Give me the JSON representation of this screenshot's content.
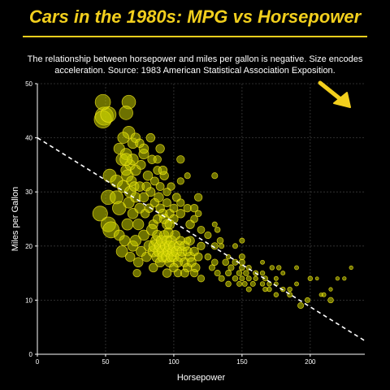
{
  "chart_data": {
    "type": "scatter",
    "title": "Cars in the 1980s: MPG vs Horsepower",
    "subtitle": "The relationship between horsepower and miles per gallon is negative. Size encodes acceleration. Source: 1983 American Statistical Association Exposition.",
    "xlabel": "Horsepower",
    "ylabel": "Miles per Gallon",
    "xlim": [
      0,
      240
    ],
    "ylim": [
      0,
      50
    ],
    "xticks": [
      "0",
      "50",
      "100",
      "150",
      "200"
    ],
    "yticks": [
      "0",
      "10",
      "20",
      "30",
      "40",
      "50"
    ],
    "grid": true,
    "size_encodes": "acceleration",
    "trendline": {
      "x": [
        0,
        240
      ],
      "y": [
        40,
        2.5
      ]
    },
    "colors": {
      "accent": "#f2cf1d",
      "point_fill": "#c6ce00",
      "point_stroke": "#f7ec1a",
      "trendline": "#ffffff"
    },
    "points": [
      {
        "x": 49,
        "y": 44,
        "s": 24.6
      },
      {
        "x": 48,
        "y": 43.4,
        "s": 23.7
      },
      {
        "x": 52,
        "y": 44.3,
        "s": 21.7
      },
      {
        "x": 48,
        "y": 46.6,
        "s": 21.5
      },
      {
        "x": 67,
        "y": 46.6,
        "s": 19.6
      },
      {
        "x": 65,
        "y": 44.6,
        "s": 19.6
      },
      {
        "x": 46,
        "y": 26,
        "s": 21
      },
      {
        "x": 52,
        "y": 29,
        "s": 20.5
      },
      {
        "x": 53,
        "y": 33,
        "s": 19
      },
      {
        "x": 52,
        "y": 24,
        "s": 21
      },
      {
        "x": 54,
        "y": 23,
        "s": 22.5
      },
      {
        "x": 58,
        "y": 32,
        "s": 18
      },
      {
        "x": 58,
        "y": 29,
        "s": 19
      },
      {
        "x": 60,
        "y": 27,
        "s": 19.5
      },
      {
        "x": 60,
        "y": 38,
        "s": 16.5
      },
      {
        "x": 62,
        "y": 36,
        "s": 17.5
      },
      {
        "x": 63,
        "y": 31,
        "s": 18
      },
      {
        "x": 65,
        "y": 34,
        "s": 16
      },
      {
        "x": 65,
        "y": 37,
        "s": 17
      },
      {
        "x": 66,
        "y": 33,
        "s": 17.5
      },
      {
        "x": 67,
        "y": 41,
        "s": 18
      },
      {
        "x": 67,
        "y": 28,
        "s": 16.5
      },
      {
        "x": 68,
        "y": 35,
        "s": 16
      },
      {
        "x": 68,
        "y": 30,
        "s": 17
      },
      {
        "x": 69,
        "y": 32,
        "s": 15.5
      },
      {
        "x": 70,
        "y": 26,
        "s": 16
      },
      {
        "x": 70,
        "y": 36,
        "s": 16.5
      },
      {
        "x": 71,
        "y": 31,
        "s": 15
      },
      {
        "x": 72,
        "y": 29,
        "s": 15.5
      },
      {
        "x": 72,
        "y": 34,
        "s": 16
      },
      {
        "x": 74,
        "y": 24,
        "s": 16.5
      },
      {
        "x": 75,
        "y": 31,
        "s": 15
      },
      {
        "x": 75,
        "y": 27,
        "s": 15.5
      },
      {
        "x": 76,
        "y": 35,
        "s": 14.5
      },
      {
        "x": 78,
        "y": 29,
        "s": 15
      },
      {
        "x": 78,
        "y": 37,
        "s": 15.5
      },
      {
        "x": 79,
        "y": 26,
        "s": 14
      },
      {
        "x": 80,
        "y": 31,
        "s": 14.5
      },
      {
        "x": 81,
        "y": 33,
        "s": 15
      },
      {
        "x": 82,
        "y": 27,
        "s": 14
      },
      {
        "x": 83,
        "y": 30,
        "s": 14.5
      },
      {
        "x": 84,
        "y": 36,
        "s": 14
      },
      {
        "x": 85,
        "y": 24,
        "s": 14.5
      },
      {
        "x": 86,
        "y": 32,
        "s": 13.5
      },
      {
        "x": 86,
        "y": 28,
        "s": 14
      },
      {
        "x": 88,
        "y": 34,
        "s": 13.5
      },
      {
        "x": 88,
        "y": 25,
        "s": 14
      },
      {
        "x": 89,
        "y": 29,
        "s": 15
      },
      {
        "x": 90,
        "y": 27,
        "s": 14
      },
      {
        "x": 90,
        "y": 31,
        "s": 13.5
      },
      {
        "x": 92,
        "y": 26,
        "s": 14.5
      },
      {
        "x": 93,
        "y": 33,
        "s": 14
      },
      {
        "x": 95,
        "y": 24,
        "s": 15
      },
      {
        "x": 95,
        "y": 28,
        "s": 13.5
      },
      {
        "x": 97,
        "y": 26,
        "s": 14
      },
      {
        "x": 98,
        "y": 31,
        "s": 13
      },
      {
        "x": 100,
        "y": 27,
        "s": 13.5
      },
      {
        "x": 100,
        "y": 25,
        "s": 14
      },
      {
        "x": 102,
        "y": 29,
        "s": 13.5
      },
      {
        "x": 105,
        "y": 26,
        "s": 14
      },
      {
        "x": 105,
        "y": 28,
        "s": 13
      },
      {
        "x": 110,
        "y": 27,
        "s": 13
      },
      {
        "x": 112,
        "y": 24,
        "s": 14
      },
      {
        "x": 115,
        "y": 25,
        "s": 12.5
      },
      {
        "x": 120,
        "y": 23,
        "s": 12.5
      },
      {
        "x": 118,
        "y": 26,
        "s": 11.5
      },
      {
        "x": 125,
        "y": 22,
        "s": 12
      },
      {
        "x": 130,
        "y": 20,
        "s": 12
      },
      {
        "x": 134,
        "y": 21,
        "s": 11.5
      },
      {
        "x": 60,
        "y": 22,
        "s": 16
      },
      {
        "x": 62,
        "y": 19,
        "s": 17
      },
      {
        "x": 64,
        "y": 21,
        "s": 16
      },
      {
        "x": 66,
        "y": 24,
        "s": 17
      },
      {
        "x": 68,
        "y": 18,
        "s": 15
      },
      {
        "x": 70,
        "y": 20,
        "s": 16
      },
      {
        "x": 72,
        "y": 21,
        "s": 16.5
      },
      {
        "x": 74,
        "y": 17,
        "s": 15
      },
      {
        "x": 76,
        "y": 19,
        "s": 15.5
      },
      {
        "x": 78,
        "y": 22,
        "s": 16
      },
      {
        "x": 80,
        "y": 18,
        "s": 15
      },
      {
        "x": 82,
        "y": 20,
        "s": 16.5
      },
      {
        "x": 84,
        "y": 23,
        "s": 16.5
      },
      {
        "x": 85,
        "y": 19,
        "s": 16.5
      },
      {
        "x": 86,
        "y": 20,
        "s": 17.5
      },
      {
        "x": 87,
        "y": 21,
        "s": 16
      },
      {
        "x": 88,
        "y": 18,
        "s": 17
      },
      {
        "x": 88,
        "y": 22,
        "s": 15.5
      },
      {
        "x": 89,
        "y": 19,
        "s": 16
      },
      {
        "x": 90,
        "y": 20,
        "s": 16.5
      },
      {
        "x": 90,
        "y": 17,
        "s": 15
      },
      {
        "x": 91,
        "y": 21,
        "s": 16
      },
      {
        "x": 92,
        "y": 19,
        "s": 17
      },
      {
        "x": 92,
        "y": 18,
        "s": 16
      },
      {
        "x": 93,
        "y": 22,
        "s": 15
      },
      {
        "x": 94,
        "y": 20,
        "s": 16
      },
      {
        "x": 95,
        "y": 18,
        "s": 17
      },
      {
        "x": 95,
        "y": 21,
        "s": 15.5
      },
      {
        "x": 96,
        "y": 19,
        "s": 16
      },
      {
        "x": 97,
        "y": 20,
        "s": 16.5
      },
      {
        "x": 97,
        "y": 17,
        "s": 15
      },
      {
        "x": 98,
        "y": 21,
        "s": 16
      },
      {
        "x": 98,
        "y": 18,
        "s": 15.5
      },
      {
        "x": 99,
        "y": 19,
        "s": 15
      },
      {
        "x": 100,
        "y": 20,
        "s": 16
      },
      {
        "x": 100,
        "y": 18,
        "s": 15.5
      },
      {
        "x": 101,
        "y": 22,
        "s": 15
      },
      {
        "x": 102,
        "y": 19,
        "s": 16
      },
      {
        "x": 103,
        "y": 17,
        "s": 15
      },
      {
        "x": 104,
        "y": 20,
        "s": 15.5
      },
      {
        "x": 105,
        "y": 18,
        "s": 15
      },
      {
        "x": 105,
        "y": 21,
        "s": 14
      },
      {
        "x": 106,
        "y": 19,
        "s": 15
      },
      {
        "x": 108,
        "y": 17,
        "s": 14.5
      },
      {
        "x": 108,
        "y": 20,
        "s": 15
      },
      {
        "x": 110,
        "y": 19,
        "s": 14.5
      },
      {
        "x": 110,
        "y": 16,
        "s": 14
      },
      {
        "x": 112,
        "y": 18,
        "s": 15
      },
      {
        "x": 112,
        "y": 21,
        "s": 14
      },
      {
        "x": 113,
        "y": 17,
        "s": 14.5
      },
      {
        "x": 115,
        "y": 19,
        "s": 14
      },
      {
        "x": 116,
        "y": 16,
        "s": 14
      },
      {
        "x": 118,
        "y": 18,
        "s": 13.5
      },
      {
        "x": 120,
        "y": 20,
        "s": 13
      },
      {
        "x": 96,
        "y": 22.5,
        "s": 15
      },
      {
        "x": 93,
        "y": 25,
        "s": 15
      },
      {
        "x": 97,
        "y": 24,
        "s": 15
      },
      {
        "x": 73,
        "y": 15,
        "s": 13
      },
      {
        "x": 85,
        "y": 16,
        "s": 14
      },
      {
        "x": 95,
        "y": 15,
        "s": 14
      },
      {
        "x": 100,
        "y": 16,
        "s": 14
      },
      {
        "x": 103,
        "y": 15,
        "s": 13
      },
      {
        "x": 108,
        "y": 15,
        "s": 13.5
      },
      {
        "x": 115,
        "y": 15,
        "s": 13
      },
      {
        "x": 120,
        "y": 14,
        "s": 12
      },
      {
        "x": 95,
        "y": 30,
        "s": 13
      },
      {
        "x": 105,
        "y": 32,
        "s": 12
      },
      {
        "x": 110,
        "y": 33,
        "s": 11
      },
      {
        "x": 88,
        "y": 36,
        "s": 13
      },
      {
        "x": 92,
        "y": 34,
        "s": 14
      },
      {
        "x": 110,
        "y": 21,
        "s": 12
      },
      {
        "x": 125,
        "y": 18,
        "s": 11.5
      },
      {
        "x": 128,
        "y": 16,
        "s": 11
      },
      {
        "x": 130,
        "y": 17,
        "s": 11.5
      },
      {
        "x": 132,
        "y": 15,
        "s": 11
      },
      {
        "x": 135,
        "y": 14,
        "s": 11
      },
      {
        "x": 138,
        "y": 17,
        "s": 11.5
      },
      {
        "x": 140,
        "y": 15,
        "s": 11
      },
      {
        "x": 140,
        "y": 13,
        "s": 10.5
      },
      {
        "x": 142,
        "y": 16,
        "s": 11
      },
      {
        "x": 145,
        "y": 14,
        "s": 10.5
      },
      {
        "x": 145,
        "y": 17,
        "s": 11
      },
      {
        "x": 148,
        "y": 15,
        "s": 10.5
      },
      {
        "x": 148,
        "y": 13,
        "s": 10
      },
      {
        "x": 150,
        "y": 16,
        "s": 10.5
      },
      {
        "x": 150,
        "y": 14,
        "s": 10
      },
      {
        "x": 150,
        "y": 18,
        "s": 11
      },
      {
        "x": 152,
        "y": 13,
        "s": 10
      },
      {
        "x": 153,
        "y": 15,
        "s": 10.5
      },
      {
        "x": 155,
        "y": 14,
        "s": 10
      },
      {
        "x": 155,
        "y": 16,
        "s": 10
      },
      {
        "x": 158,
        "y": 13,
        "s": 10
      },
      {
        "x": 160,
        "y": 15,
        "s": 10
      },
      {
        "x": 160,
        "y": 14,
        "s": 9.5
      },
      {
        "x": 165,
        "y": 13,
        "s": 9.5
      },
      {
        "x": 165,
        "y": 15,
        "s": 9.5
      },
      {
        "x": 167,
        "y": 14,
        "s": 10
      },
      {
        "x": 170,
        "y": 13,
        "s": 9.5
      },
      {
        "x": 170,
        "y": 12,
        "s": 9.5
      },
      {
        "x": 175,
        "y": 14,
        "s": 9
      },
      {
        "x": 175,
        "y": 13,
        "s": 9
      },
      {
        "x": 180,
        "y": 12,
        "s": 9.5
      },
      {
        "x": 180,
        "y": 15,
        "s": 9
      },
      {
        "x": 185,
        "y": 12,
        "s": 9.5
      },
      {
        "x": 190,
        "y": 13,
        "s": 9
      },
      {
        "x": 193,
        "y": 9,
        "s": 11
      },
      {
        "x": 198,
        "y": 10,
        "s": 10
      },
      {
        "x": 200,
        "y": 14,
        "s": 9.5
      },
      {
        "x": 205,
        "y": 14,
        "s": 8
      },
      {
        "x": 208,
        "y": 11,
        "s": 8.5
      },
      {
        "x": 210,
        "y": 11,
        "s": 9
      },
      {
        "x": 215,
        "y": 12,
        "s": 8.5
      },
      {
        "x": 215,
        "y": 10,
        "s": 10.5
      },
      {
        "x": 220,
        "y": 14,
        "s": 8.5
      },
      {
        "x": 225,
        "y": 14,
        "s": 8.5
      },
      {
        "x": 230,
        "y": 16,
        "s": 8.5
      },
      {
        "x": 140,
        "y": 18,
        "s": 9.5
      },
      {
        "x": 145,
        "y": 20,
        "s": 10
      },
      {
        "x": 150,
        "y": 21,
        "s": 10
      },
      {
        "x": 130,
        "y": 24,
        "s": 10
      },
      {
        "x": 135,
        "y": 20,
        "s": 10
      },
      {
        "x": 132,
        "y": 23,
        "s": 10.5
      },
      {
        "x": 165,
        "y": 17,
        "s": 9
      },
      {
        "x": 167,
        "y": 12,
        "s": 9.5
      },
      {
        "x": 172,
        "y": 16,
        "s": 9.5
      },
      {
        "x": 177,
        "y": 16,
        "s": 9.5
      },
      {
        "x": 150,
        "y": 17,
        "s": 11
      },
      {
        "x": 155,
        "y": 12,
        "s": 10
      },
      {
        "x": 175,
        "y": 11,
        "s": 9.5
      },
      {
        "x": 185,
        "y": 11,
        "s": 10
      },
      {
        "x": 190,
        "y": 16,
        "s": 9
      },
      {
        "x": 105,
        "y": 36,
        "s": 13
      },
      {
        "x": 115,
        "y": 27,
        "s": 13
      },
      {
        "x": 118,
        "y": 29,
        "s": 13
      },
      {
        "x": 130,
        "y": 33,
        "s": 11
      },
      {
        "x": 70,
        "y": 39,
        "s": 16
      },
      {
        "x": 72,
        "y": 40,
        "s": 15
      },
      {
        "x": 63,
        "y": 40,
        "s": 17
      },
      {
        "x": 65,
        "y": 36,
        "s": 18
      },
      {
        "x": 83,
        "y": 40,
        "s": 14
      },
      {
        "x": 90,
        "y": 38,
        "s": 14
      },
      {
        "x": 78,
        "y": 38,
        "s": 15
      },
      {
        "x": 75,
        "y": 39,
        "s": 14
      }
    ]
  }
}
